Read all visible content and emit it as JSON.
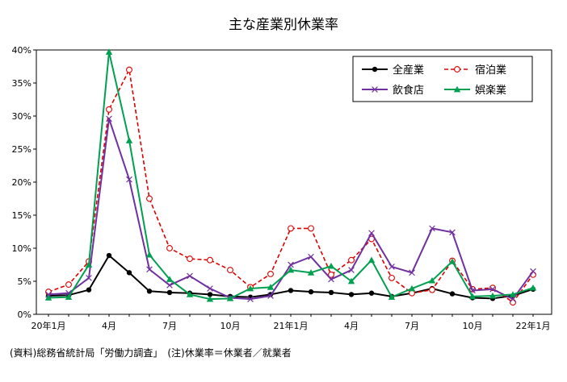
{
  "chart_data": {
    "type": "line",
    "title": "主な産業別休業率",
    "xlabel": "",
    "ylabel": "",
    "ylim": [
      0,
      40
    ],
    "yticks": [
      "0%",
      "5%",
      "10%",
      "15%",
      "20%",
      "25%",
      "30%",
      "35%",
      "40%"
    ],
    "ytick_values": [
      0,
      5,
      10,
      15,
      20,
      25,
      30,
      35,
      40
    ],
    "x_count": 25,
    "xticks": [
      {
        "index": 0,
        "label": "20年1月"
      },
      {
        "index": 3,
        "label": "4月"
      },
      {
        "index": 6,
        "label": "7月"
      },
      {
        "index": 9,
        "label": "10月"
      },
      {
        "index": 12,
        "label": "21年1月"
      },
      {
        "index": 15,
        "label": "4月"
      },
      {
        "index": 18,
        "label": "7月"
      },
      {
        "index": 21,
        "label": "10月"
      },
      {
        "index": 24,
        "label": "22年1月"
      }
    ],
    "grid": false,
    "legend_position": "top-right",
    "series": [
      {
        "name": "全産業",
        "color": "#000000",
        "dash": "solid",
        "marker": "dot",
        "values": [
          2.8,
          2.9,
          3.7,
          8.9,
          6.3,
          3.5,
          3.3,
          3.2,
          3.0,
          2.7,
          2.6,
          3.0,
          3.6,
          3.4,
          3.3,
          3.0,
          3.2,
          2.7,
          3.2,
          3.9,
          3.1,
          2.5,
          2.4,
          2.8,
          3.8
        ]
      },
      {
        "name": "宿泊業",
        "color": "#dd0000",
        "dash": "dashed",
        "marker": "circle",
        "values": [
          3.4,
          4.5,
          8.0,
          31.0,
          37.0,
          17.5,
          10.0,
          8.4,
          8.2,
          6.7,
          4.1,
          6.1,
          13.0,
          13.0,
          6.0,
          8.2,
          11.4,
          5.5,
          3.2,
          3.7,
          8.1,
          3.8,
          4.0,
          1.8,
          6.0
        ]
      },
      {
        "name": "飲食店",
        "color": "#7030a0",
        "dash": "solid",
        "marker": "x",
        "values": [
          3.0,
          3.2,
          5.5,
          29.6,
          20.4,
          6.8,
          4.4,
          5.8,
          3.9,
          2.5,
          2.3,
          2.8,
          7.5,
          8.7,
          5.3,
          6.7,
          12.3,
          7.2,
          6.3,
          13.0,
          12.4,
          3.6,
          3.8,
          2.3,
          6.5
        ]
      },
      {
        "name": "娯楽業",
        "color": "#00a050",
        "dash": "solid",
        "marker": "triangle",
        "values": [
          2.5,
          2.6,
          7.5,
          39.7,
          26.3,
          9.0,
          5.3,
          3.0,
          2.3,
          2.4,
          3.9,
          4.1,
          6.7,
          6.3,
          7.3,
          5.0,
          8.2,
          2.6,
          3.9,
          5.1,
          8.0,
          2.7,
          2.8,
          3.0,
          4.0
        ]
      }
    ]
  },
  "footnote": "(資料)総務省統計局「労働力調査」　(注)休業率＝休業者／就業者"
}
